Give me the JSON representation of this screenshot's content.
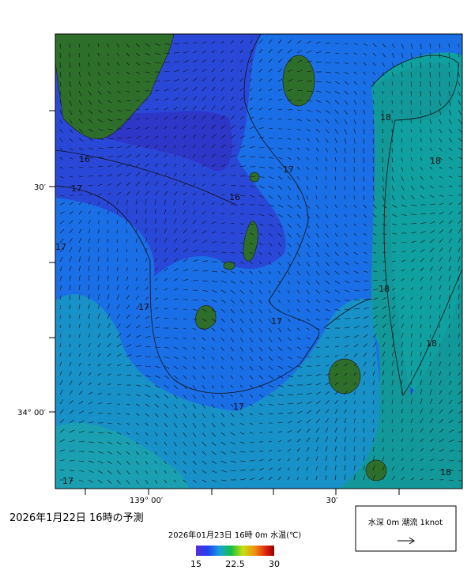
{
  "title": "2026年1月22日 16時の予測",
  "map": {
    "subtitle": "2026年01月23日 16時 0m 水温(℃)",
    "lat_labels": [
      "30′",
      "34° 00′"
    ],
    "lon_labels": [
      "139° 00′",
      "30′"
    ],
    "contour_labels": [
      16,
      17,
      16,
      17,
      18,
      18,
      17,
      18,
      17,
      17,
      18,
      17,
      17,
      18
    ],
    "colorbar": {
      "range": [
        15,
        30
      ],
      "ticks": [
        15,
        22.5,
        30
      ]
    },
    "legend": "水深 0m 潮流 1knot"
  }
}
